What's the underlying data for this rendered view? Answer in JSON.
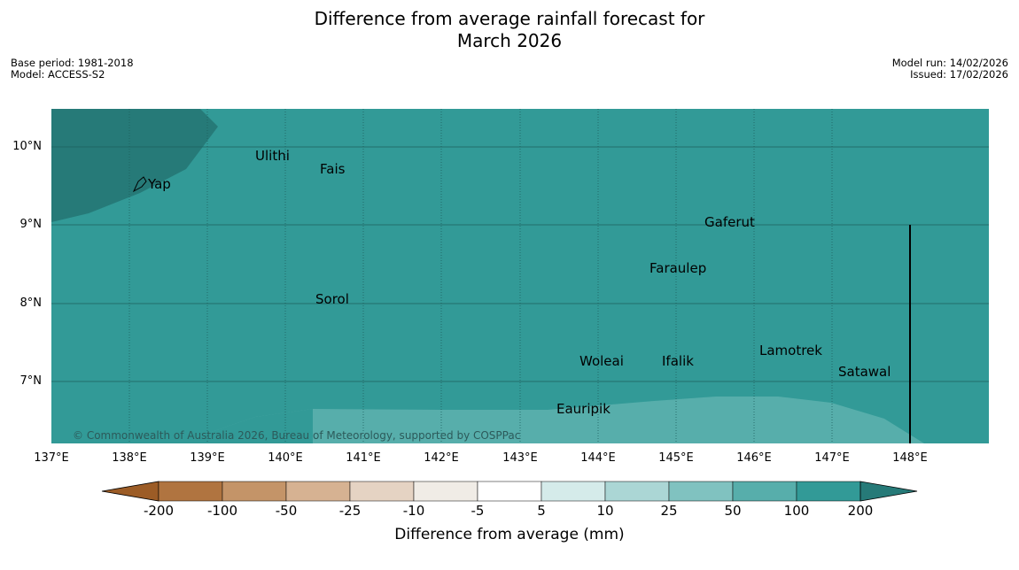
{
  "title_line1": "Difference from average rainfall forecast for",
  "title_line2": "March 2026",
  "meta_left": {
    "base_period": "Base period: 1981-2018",
    "model": "Model: ACCESS-S2"
  },
  "meta_right": {
    "model_run": "Model run: 14/02/2026",
    "issued": "Issued: 17/02/2026"
  },
  "lat_labels": [
    "10°N",
    "9°N",
    "8°N",
    "7°N"
  ],
  "lon_labels": [
    "137°E",
    "138°E",
    "139°E",
    "140°E",
    "141°E",
    "142°E",
    "143°E",
    "144°E",
    "145°E",
    "146°E",
    "147°E",
    "148°E"
  ],
  "places": [
    "Yap",
    "Ulithi",
    "Fais",
    "Gaferut",
    "Faraulep",
    "Sorol",
    "Woleai",
    "Ifalik",
    "Lamotrek",
    "Satawal",
    "Eauripik"
  ],
  "copyright": "© Commonwealth of Australia 2026, Bureau of Meteorology, supported by COSPPac",
  "colorbar": {
    "ticks": [
      "-200",
      "-100",
      "-50",
      "-25",
      "-10",
      "-5",
      "5",
      "10",
      "25",
      "50",
      "100",
      "200"
    ],
    "colors": [
      "#9c5c26",
      "#b07440",
      "#c49468",
      "#d6b292",
      "#e5d3c3",
      "#f0ece6",
      "#ffffff",
      "#d5ebea",
      "#abd6d5",
      "#80c2c0",
      "#57aeab",
      "#329a97",
      "#267a78"
    ],
    "label": "Difference from average (mm)"
  },
  "map_colors": {
    "main": "#329a97",
    "wetter": "#267a78",
    "drier": "#57aeab"
  }
}
